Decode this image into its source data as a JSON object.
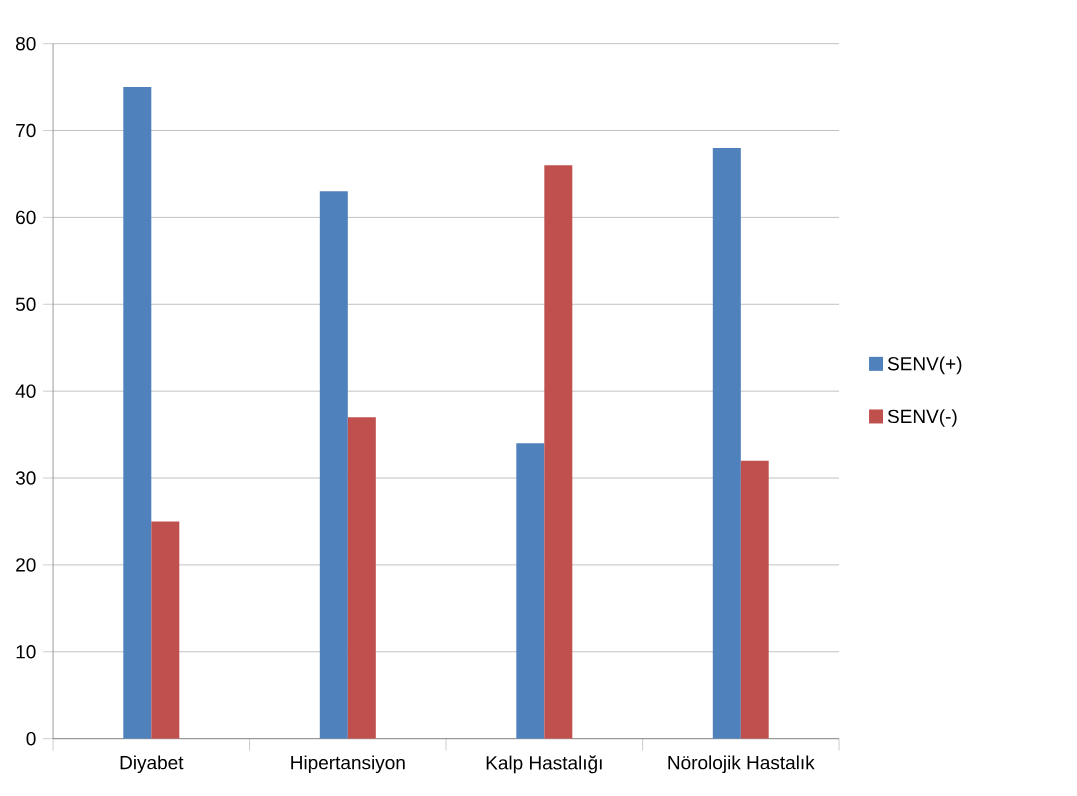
{
  "chart_data": {
    "type": "bar",
    "categories": [
      "Diyabet",
      "Hipertansiyon",
      "Kalp Hastalığı",
      "Nörolojik Hastalık"
    ],
    "series": [
      {
        "name": "SENV(+)",
        "color": "#4f81bd",
        "values": [
          75,
          63,
          34,
          68
        ]
      },
      {
        "name": "SENV(-)",
        "color": "#c0504d",
        "values": [
          25,
          37,
          66,
          32
        ]
      }
    ],
    "ylim": [
      0,
      80
    ],
    "yticks": [
      0,
      10,
      20,
      30,
      40,
      50,
      60,
      70,
      80
    ],
    "grid": "y",
    "legend": "right"
  }
}
